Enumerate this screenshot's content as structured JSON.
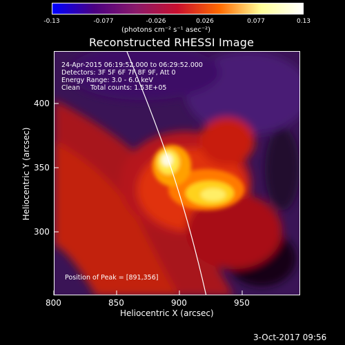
{
  "colorbar": {
    "ticks": [
      "-0.13",
      "-0.077",
      "-0.026",
      "0.026",
      "0.077",
      "0.13"
    ],
    "units": "(photons cm⁻² s⁻¹ asec⁻²)",
    "colors": [
      "#0000ff",
      "#4b0082",
      "#8a1a6a",
      "#c8102e",
      "#ff6a00",
      "#ffff99",
      "#ffffff"
    ]
  },
  "title": "Reconstructed RHESSI Image",
  "info": {
    "time_range": "24-Apr-2015 06:19:52.000 to 06:29:52.000",
    "detectors": "Detectors: 3F 5F 6F 7F 8F 9F, Att 0",
    "energy": "Energy Range: 3.0 - 6.0 keV",
    "clean": "Clean     Total counts: 1.53E+05",
    "peak": "Position of Peak = [891,356]"
  },
  "axes": {
    "xlabel": "Heliocentric X (arcsec)",
    "ylabel": "Heliocentric Y (arcsec)",
    "xticks": [
      "800",
      "850",
      "900",
      "950"
    ],
    "yticks": [
      "400",
      "350",
      "300"
    ]
  },
  "timestamp": "3-Oct-2017 09:56"
}
